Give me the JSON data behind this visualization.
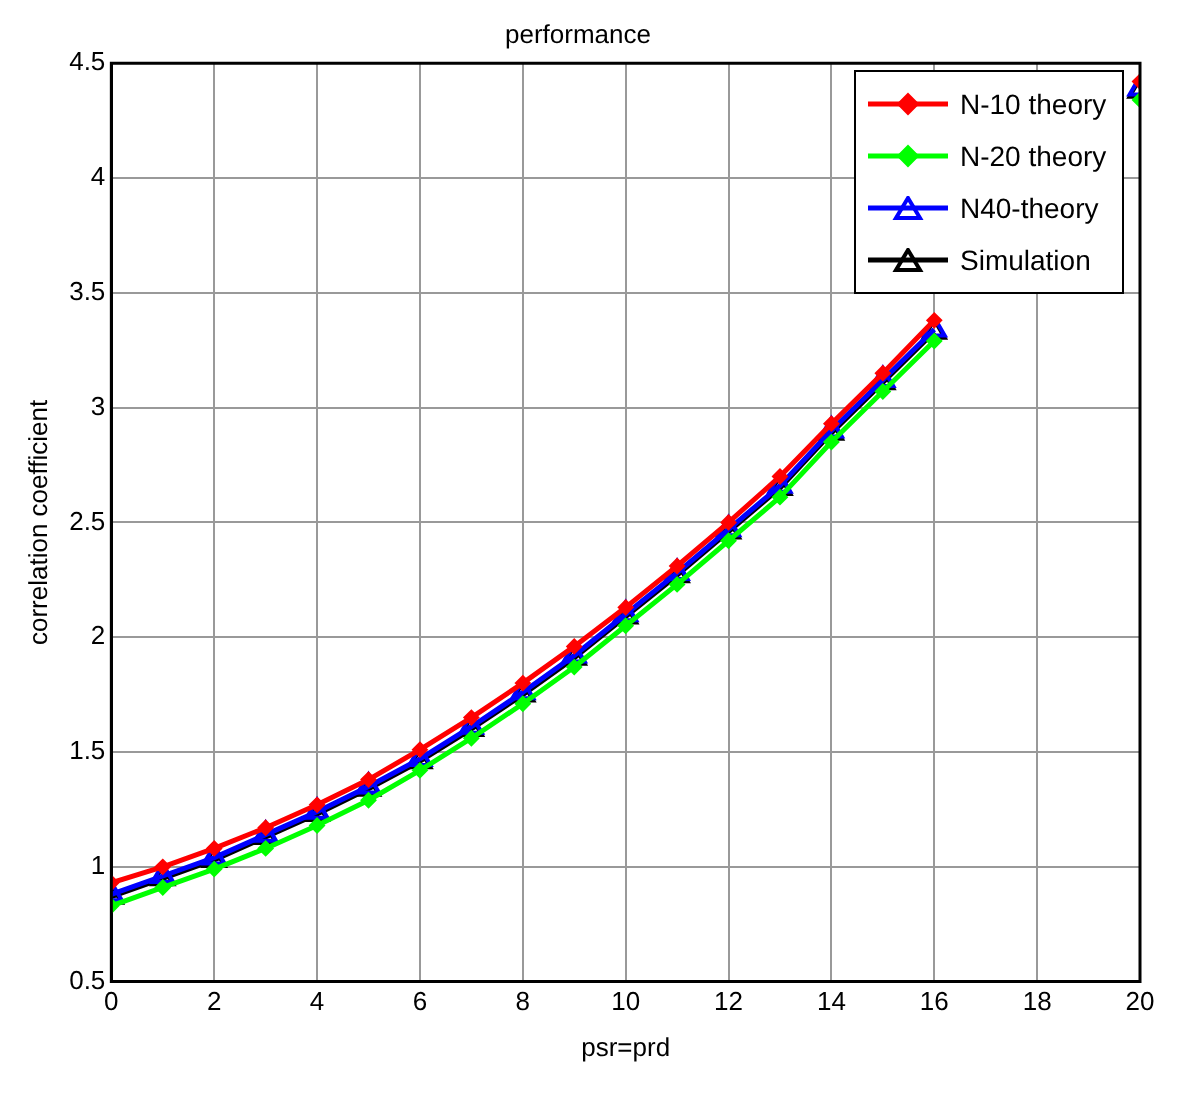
{
  "chart_data": {
    "type": "line",
    "title": "performance",
    "xlabel": "psr=prd",
    "ylabel": "correlation coefficient",
    "x": [
      0,
      1,
      2,
      3,
      4,
      5,
      6,
      7,
      8,
      9,
      10,
      11,
      12,
      13,
      14,
      15,
      16,
      17,
      18,
      19,
      20
    ],
    "series": [
      {
        "name": "N-10 theory",
        "color": "#ff0000",
        "marker": "diamond",
        "values": [
          0.93,
          1.0,
          1.08,
          1.17,
          1.27,
          1.38,
          1.51,
          1.65,
          1.8,
          1.96,
          2.13,
          2.31,
          2.5,
          2.7,
          2.93,
          3.15,
          3.38,
          null,
          null,
          null,
          4.42
        ]
      },
      {
        "name": "N-20 theory",
        "color": "#00ff00",
        "marker": "diamond",
        "values": [
          0.83,
          0.91,
          0.99,
          1.08,
          1.18,
          1.29,
          1.42,
          1.56,
          1.71,
          1.87,
          2.05,
          2.23,
          2.42,
          2.61,
          2.85,
          3.07,
          3.29,
          null,
          null,
          null,
          4.34
        ]
      },
      {
        "name": "N40-theory",
        "color": "#0000ff",
        "marker": "triangle",
        "values": [
          0.88,
          0.96,
          1.04,
          1.14,
          1.24,
          1.35,
          1.47,
          1.61,
          1.76,
          1.92,
          2.1,
          2.28,
          2.47,
          2.66,
          2.9,
          3.12,
          3.34,
          null,
          null,
          null,
          4.39
        ]
      },
      {
        "name": "Simulation",
        "color": "#000000",
        "marker": "triangle",
        "values": [
          0.87,
          0.95,
          1.03,
          1.13,
          1.23,
          1.34,
          1.46,
          1.6,
          1.75,
          1.91,
          2.09,
          2.27,
          2.46,
          2.65,
          2.89,
          3.11,
          3.33,
          null,
          null,
          null,
          4.38
        ]
      }
    ],
    "xlim": [
      0,
      20
    ],
    "xticks": [
      0,
      2,
      4,
      6,
      8,
      10,
      12,
      14,
      16,
      18,
      20
    ],
    "ylim": [
      0.5,
      4.5
    ],
    "yticks": [
      0.5,
      1,
      1.5,
      2,
      2.5,
      3,
      3.5,
      4,
      4.5
    ],
    "grid": true,
    "legend": "top right",
    "line_style": "solid"
  }
}
